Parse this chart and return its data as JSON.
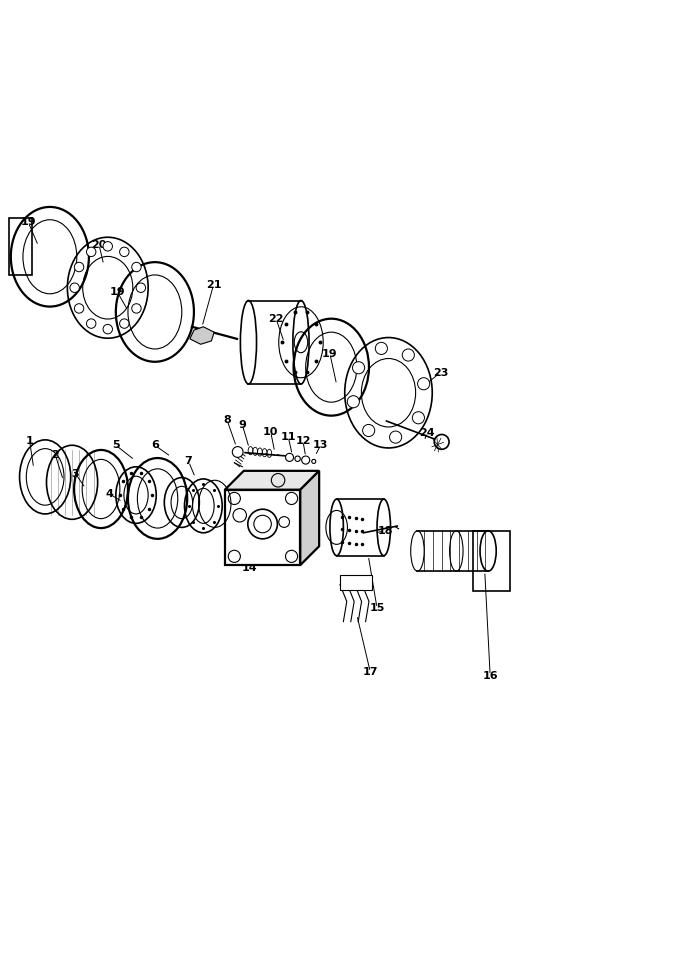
{
  "bg_color": "#ffffff",
  "line_color": "#000000",
  "fig_width": 6.76,
  "fig_height": 9.74,
  "dpi": 100
}
